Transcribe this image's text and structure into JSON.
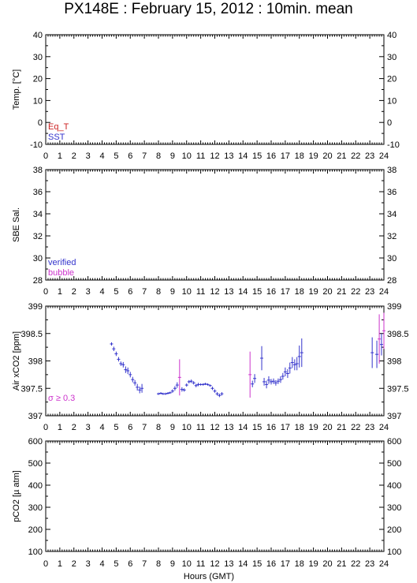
{
  "title": "PX148E : February 15, 2012 : 10min. mean",
  "xlabel": "Hours (GMT)",
  "x_ticks": [
    "0",
    "1",
    "2",
    "3",
    "4",
    "5",
    "6",
    "7",
    "8",
    "9",
    "10",
    "11",
    "12",
    "13",
    "14",
    "15",
    "16",
    "17",
    "18",
    "19",
    "20",
    "21",
    "22",
    "23",
    "24"
  ],
  "colors": {
    "blue": "#3333cc",
    "magenta": "#cc33cc",
    "red": "#cc2222",
    "axis": "#000000"
  },
  "chart_data": [
    {
      "type": "line",
      "ylabel": "Temp. [°C]",
      "xlim": [
        0,
        24
      ],
      "ylim": [
        -10,
        40
      ],
      "y_ticks": [
        "40",
        "30",
        "20",
        "10",
        "0",
        "-10"
      ],
      "legend": [
        "Eq_T",
        "SST"
      ],
      "legend_placement": "bottom-left",
      "series": [
        {
          "name": "Eq_T",
          "color": "#cc2222",
          "points": []
        },
        {
          "name": "SST",
          "color": "#3333cc",
          "points": []
        }
      ]
    },
    {
      "type": "line",
      "ylabel": "SBE Sal.",
      "xlim": [
        0,
        24
      ],
      "ylim": [
        28,
        38
      ],
      "y_ticks": [
        "38",
        "36",
        "34",
        "32",
        "30",
        "28"
      ],
      "legend": [
        "verified",
        "bubble"
      ],
      "legend_placement": "bottom-left",
      "series": [
        {
          "name": "verified",
          "color": "#3333cc",
          "points": []
        },
        {
          "name": "bubble",
          "color": "#cc33cc",
          "points": []
        }
      ]
    },
    {
      "type": "scatter",
      "ylabel": "Air xCO2 [ppm]",
      "xlim": [
        0,
        24
      ],
      "ylim": [
        397,
        399
      ],
      "y_ticks": [
        "399",
        "398.5",
        "398",
        "397.5",
        "397"
      ],
      "annotation": "σ ≥ 0.3",
      "series": [
        {
          "name": "verified",
          "color": "#3333cc",
          "points": [
            [
              4.67,
              398.31,
              0.03
            ],
            [
              4.83,
              398.22,
              0.04
            ],
            [
              5.0,
              398.13,
              0.04
            ],
            [
              5.17,
              398.03,
              0.04
            ],
            [
              5.33,
              397.95,
              0.04
            ],
            [
              5.5,
              397.93,
              0.05
            ],
            [
              5.67,
              397.84,
              0.06
            ],
            [
              5.83,
              397.82,
              0.06
            ],
            [
              6.0,
              397.75,
              0.05
            ],
            [
              6.17,
              397.66,
              0.05
            ],
            [
              6.33,
              397.6,
              0.05
            ],
            [
              6.5,
              397.52,
              0.06
            ],
            [
              6.67,
              397.47,
              0.06
            ],
            [
              6.83,
              397.5,
              0.08
            ],
            [
              8.0,
              397.4,
              0.02
            ],
            [
              8.17,
              397.41,
              0.02
            ],
            [
              8.33,
              397.4,
              0.02
            ],
            [
              8.5,
              397.4,
              0.02
            ],
            [
              8.67,
              397.41,
              0.02
            ],
            [
              8.83,
              397.42,
              0.02
            ],
            [
              9.0,
              397.45,
              0.03
            ],
            [
              9.17,
              397.5,
              0.04
            ],
            [
              9.33,
              397.56,
              0.05
            ],
            [
              9.67,
              397.48,
              0.04
            ],
            [
              9.83,
              397.47,
              0.03
            ],
            [
              10.0,
              397.56,
              0.03
            ],
            [
              10.17,
              397.62,
              0.03
            ],
            [
              10.33,
              397.63,
              0.03
            ],
            [
              10.5,
              397.6,
              0.03
            ],
            [
              10.67,
              397.55,
              0.03
            ],
            [
              10.83,
              397.57,
              0.03
            ],
            [
              11.0,
              397.57,
              0.02
            ],
            [
              11.17,
              397.57,
              0.02
            ],
            [
              11.33,
              397.58,
              0.02
            ],
            [
              11.5,
              397.57,
              0.02
            ],
            [
              11.67,
              397.55,
              0.02
            ],
            [
              11.83,
              397.5,
              0.03
            ],
            [
              12.0,
              397.45,
              0.03
            ],
            [
              12.17,
              397.4,
              0.03
            ],
            [
              12.33,
              397.37,
              0.03
            ],
            [
              12.5,
              397.4,
              0.03
            ],
            [
              14.67,
              397.58,
              0.06
            ],
            [
              14.83,
              397.68,
              0.08
            ],
            [
              15.33,
              398.05,
              0.22
            ],
            [
              15.5,
              397.62,
              0.07
            ],
            [
              15.67,
              397.57,
              0.07
            ],
            [
              15.83,
              397.65,
              0.07
            ],
            [
              16.0,
              397.62,
              0.05
            ],
            [
              16.17,
              397.63,
              0.05
            ],
            [
              16.33,
              397.6,
              0.05
            ],
            [
              16.5,
              397.63,
              0.05
            ],
            [
              16.67,
              397.66,
              0.06
            ],
            [
              16.83,
              397.72,
              0.06
            ],
            [
              17.0,
              397.8,
              0.08
            ],
            [
              17.17,
              397.77,
              0.08
            ],
            [
              17.33,
              397.87,
              0.1
            ],
            [
              17.5,
              397.97,
              0.1
            ],
            [
              17.67,
              397.93,
              0.1
            ],
            [
              17.83,
              397.95,
              0.12
            ],
            [
              18.0,
              398.08,
              0.2
            ],
            [
              18.17,
              398.15,
              0.26
            ],
            [
              23.17,
              398.15,
              0.28
            ],
            [
              23.5,
              398.12,
              0.25
            ],
            [
              23.83,
              398.3,
              0.2
            ]
          ]
        },
        {
          "name": "σ ≥ 0.3",
          "color": "#cc33cc",
          "points": [
            [
              9.5,
              397.7,
              0.33
            ],
            [
              14.5,
              397.75,
              0.42
            ],
            [
              23.67,
              398.4,
              0.45
            ],
            [
              24.0,
              398.55,
              0.33
            ]
          ]
        }
      ]
    },
    {
      "type": "line",
      "ylabel": "pCO2 [µ atm]",
      "xlim": [
        0,
        24
      ],
      "ylim": [
        100,
        600
      ],
      "y_ticks": [
        "600",
        "500",
        "400",
        "300",
        "200",
        "100"
      ],
      "series": []
    }
  ]
}
